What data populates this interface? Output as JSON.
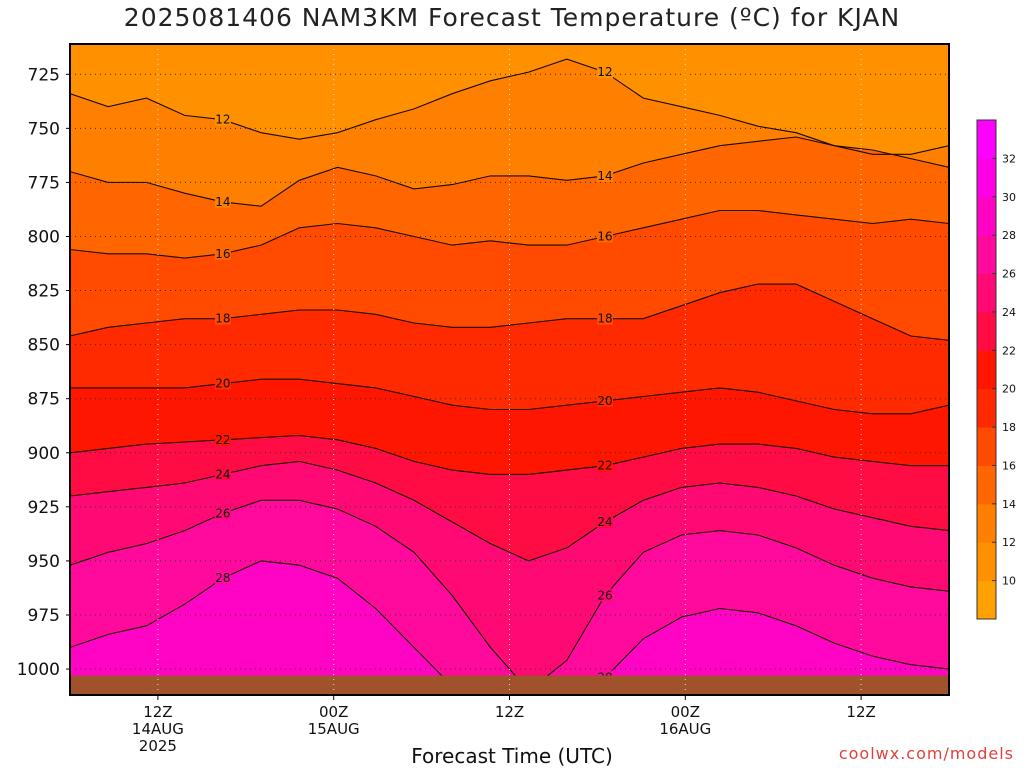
{
  "chart_data": {
    "type": "heatmap",
    "title": "2025081406 NAM3KM Forecast Temperature (ºC) for KJAN",
    "xlabel": "Forecast Time (UTC)",
    "ylabel": "",
    "credit": "coolwx.com/models",
    "y_ticks": [
      725,
      750,
      775,
      800,
      825,
      850,
      875,
      900,
      925,
      950,
      975,
      1000
    ],
    "ylim": [
      1012,
      711
    ],
    "x_ticks": [
      {
        "hours": 6,
        "label": "12Z",
        "line2": "14AUG",
        "line3": "2025"
      },
      {
        "hours": 18,
        "label": "00Z",
        "line2": "15AUG",
        "line3": ""
      },
      {
        "hours": 30,
        "label": "12Z",
        "line2": "",
        "line3": ""
      },
      {
        "hours": 42,
        "label": "00Z",
        "line2": "16AUG",
        "line3": ""
      },
      {
        "hours": 54,
        "label": "12Z",
        "line2": "",
        "line3": ""
      }
    ],
    "xlim": [
      0,
      60
    ],
    "grid": true,
    "colorbar": {
      "ticks": [
        10,
        12,
        14,
        16,
        18,
        20,
        22,
        24,
        26,
        28,
        30,
        32
      ],
      "range": [
        8,
        34
      ],
      "colors": [
        "#ffa100",
        "#ff9000",
        "#ff7f00",
        "#ff6600",
        "#ff4a00",
        "#ff2a00",
        "#ff1600",
        "#ff0c44",
        "#ff0a74",
        "#ff0a9c",
        "#ff04c4",
        "#ff00e6",
        "#ff00ff"
      ]
    },
    "series": [
      {
        "value": 12,
        "p": [
          734,
          740,
          736,
          744,
          746,
          752,
          755,
          752,
          746,
          741,
          734,
          728,
          724,
          718,
          724,
          736,
          740,
          744,
          749,
          752,
          758,
          762,
          762,
          758
        ]
      },
      {
        "value": 14,
        "p": [
          770,
          775,
          775,
          780,
          784,
          786,
          774,
          768,
          772,
          778,
          776,
          772,
          772,
          774,
          772,
          766,
          762,
          758,
          756,
          754,
          758,
          760,
          764,
          768
        ]
      },
      {
        "value": 16,
        "p": [
          806,
          808,
          808,
          810,
          808,
          804,
          796,
          794,
          796,
          800,
          804,
          802,
          804,
          804,
          800,
          796,
          792,
          788,
          788,
          790,
          792,
          794,
          792,
          794
        ]
      },
      {
        "value": 18,
        "p": [
          846,
          842,
          840,
          838,
          838,
          836,
          834,
          834,
          836,
          840,
          842,
          842,
          840,
          838,
          838,
          838,
          832,
          826,
          822,
          822,
          830,
          838,
          846,
          848
        ]
      },
      {
        "value": 20,
        "p": [
          870,
          870,
          870,
          870,
          868,
          866,
          866,
          868,
          870,
          874,
          878,
          880,
          880,
          878,
          876,
          874,
          872,
          870,
          872,
          876,
          880,
          882,
          882,
          878
        ]
      },
      {
        "value": 22,
        "p": [
          900,
          898,
          896,
          895,
          894,
          893,
          892,
          894,
          898,
          904,
          908,
          910,
          910,
          908,
          906,
          902,
          898,
          896,
          896,
          898,
          902,
          904,
          906,
          906
        ]
      },
      {
        "value": 24,
        "p": [
          920,
          918,
          916,
          914,
          910,
          906,
          904,
          908,
          914,
          922,
          932,
          942,
          950,
          944,
          932,
          922,
          916,
          914,
          916,
          920,
          926,
          930,
          934,
          936
        ]
      },
      {
        "value": 26,
        "p": [
          952,
          946,
          942,
          936,
          928,
          922,
          922,
          926,
          934,
          946,
          966,
          990,
          1010,
          996,
          966,
          946,
          938,
          936,
          938,
          944,
          952,
          958,
          962,
          964
        ]
      },
      {
        "value": 28,
        "p": [
          990,
          984,
          980,
          970,
          958,
          950,
          952,
          958,
          972,
          990,
          1008,
          1012,
          1012,
          1012,
          1004,
          986,
          976,
          972,
          974,
          980,
          988,
          994,
          998,
          1000
        ]
      }
    ]
  }
}
